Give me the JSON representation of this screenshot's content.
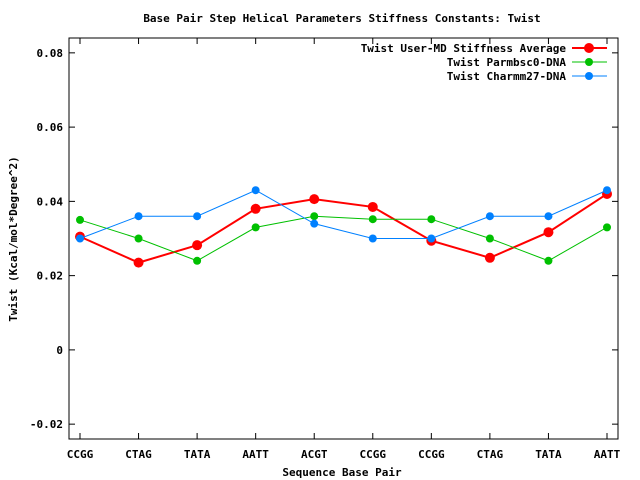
{
  "chart_data": {
    "type": "line",
    "title": "Base Pair Step Helical Parameters Stiffness Constants: Twist",
    "xlabel": "Sequence Base Pair",
    "ylabel": "Twist (Kcal/mol*Degree^2)",
    "categories": [
      "CCGG",
      "CTAG",
      "TATA",
      "AATT",
      "ACGT",
      "CCGG",
      "CCGG",
      "CTAG",
      "TATA",
      "AATT"
    ],
    "ylim": [
      -0.024,
      0.084
    ],
    "yticks": [
      -0.02,
      0,
      0.02,
      0.04,
      0.06,
      0.08
    ],
    "ytick_labels": [
      "-0.02",
      "0",
      "0.02",
      "0.04",
      "0.06",
      "0.08"
    ],
    "grid": false,
    "legend_position": "top-right",
    "series": [
      {
        "name": "Twist User-MD Stiffness Average",
        "color": "#ff0000",
        "values": [
          0.0305,
          0.0235,
          0.0282,
          0.038,
          0.0406,
          0.0385,
          0.0294,
          0.0248,
          0.0317,
          0.042
        ]
      },
      {
        "name": "Twist Parmbsc0-DNA",
        "color": "#00c000",
        "values": [
          0.035,
          0.03,
          0.024,
          0.033,
          0.036,
          0.0352,
          0.0352,
          0.03,
          0.024,
          0.033
        ]
      },
      {
        "name": "Twist Charmm27-DNA",
        "color": "#0080ff",
        "values": [
          0.03,
          0.036,
          0.036,
          0.043,
          0.034,
          0.03,
          0.03,
          0.036,
          0.036,
          0.043
        ]
      }
    ]
  }
}
